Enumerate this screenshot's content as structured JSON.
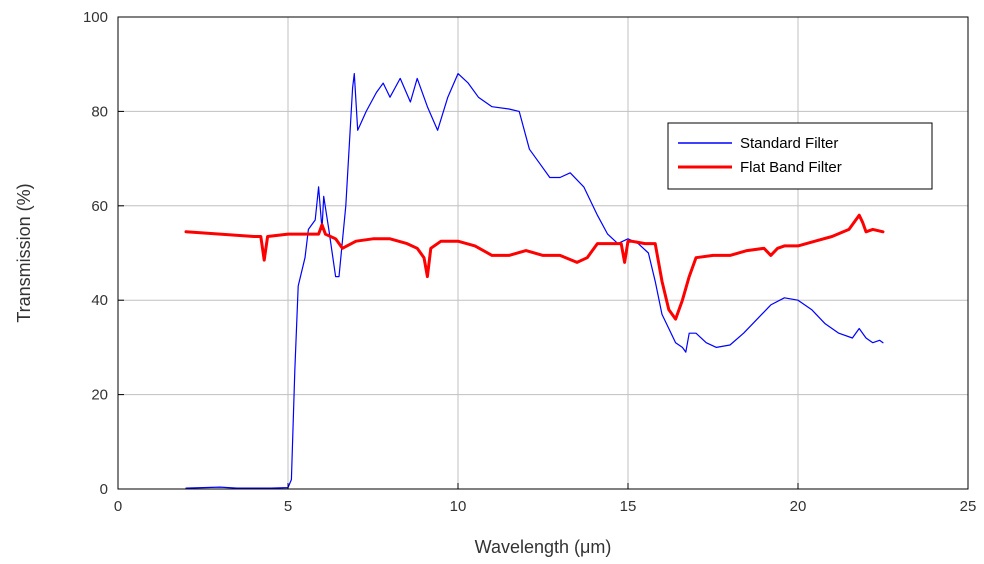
{
  "chart_data": {
    "type": "line",
    "title": "",
    "xlabel": "Wavelength (μm)",
    "ylabel": "Transmission (%)",
    "xlim": [
      0,
      25
    ],
    "ylim": [
      0,
      100
    ],
    "xticks": [
      0,
      5,
      10,
      15,
      20,
      25
    ],
    "yticks": [
      0,
      20,
      40,
      60,
      80,
      100
    ],
    "grid": true,
    "legend_position": "top-right",
    "series": [
      {
        "name": "Standard Filter",
        "color": "#0000ff",
        "x": [
          2.0,
          2.5,
          3.0,
          3.5,
          4.0,
          4.5,
          5.0,
          5.1,
          5.2,
          5.3,
          5.5,
          5.6,
          5.8,
          5.9,
          6.0,
          6.05,
          6.2,
          6.4,
          6.5,
          6.7,
          6.9,
          6.95,
          7.05,
          7.3,
          7.6,
          7.8,
          8.0,
          8.3,
          8.6,
          8.8,
          9.1,
          9.4,
          9.7,
          10.0,
          10.3,
          10.6,
          11.0,
          11.5,
          11.8,
          12.1,
          12.4,
          12.7,
          13.0,
          13.3,
          13.7,
          14.1,
          14.4,
          14.7,
          15.0,
          15.3,
          15.6,
          15.8,
          16.0,
          16.2,
          16.4,
          16.6,
          16.7,
          16.8,
          17.0,
          17.3,
          17.6,
          18.0,
          18.4,
          18.8,
          19.2,
          19.6,
          20.0,
          20.4,
          20.8,
          21.2,
          21.6,
          21.8,
          22.0,
          22.2,
          22.4,
          22.5
        ],
        "values": [
          0.2,
          0.3,
          0.4,
          0.2,
          0.2,
          0.2,
          0.3,
          2,
          25,
          43,
          49,
          55,
          57,
          64,
          55,
          62,
          55,
          45,
          45,
          60,
          85,
          88,
          76,
          80,
          84,
          86,
          83,
          87,
          82,
          87,
          81,
          76,
          83,
          88,
          86,
          83,
          81,
          80.5,
          80,
          72,
          69,
          66,
          66,
          67,
          64,
          58,
          54,
          52,
          53,
          52,
          50,
          44,
          37,
          34,
          31,
          30,
          29,
          33,
          33,
          31,
          30,
          30.5,
          33,
          36,
          39,
          40.5,
          40,
          38,
          35,
          33,
          32,
          34,
          32,
          31,
          31.5,
          31
        ]
      },
      {
        "name": "Flat Band Filter",
        "color": "#ff0000",
        "x": [
          2.0,
          3.0,
          4.0,
          4.2,
          4.3,
          4.4,
          5.0,
          5.5,
          5.9,
          6.0,
          6.1,
          6.4,
          6.6,
          7.0,
          7.5,
          8.0,
          8.5,
          8.8,
          9.0,
          9.1,
          9.2,
          9.5,
          10.0,
          10.5,
          11.0,
          11.5,
          12.0,
          12.5,
          13.0,
          13.5,
          13.8,
          14.1,
          14.5,
          14.8,
          14.9,
          15.0,
          15.1,
          15.5,
          15.8,
          16.0,
          16.2,
          16.4,
          16.6,
          16.8,
          17.0,
          17.5,
          18.0,
          18.5,
          19.0,
          19.2,
          19.4,
          19.6,
          20.0,
          20.5,
          21.0,
          21.5,
          21.8,
          21.9,
          22.0,
          22.2,
          22.5
        ],
        "values": [
          54.5,
          54,
          53.5,
          53.5,
          48.5,
          53.5,
          54,
          54,
          54,
          56,
          54,
          53,
          51,
          52.5,
          53,
          53,
          52,
          51,
          49,
          45,
          51,
          52.5,
          52.5,
          51.5,
          49.5,
          49.5,
          50.5,
          49.5,
          49.5,
          48,
          49,
          52,
          52,
          52,
          48,
          52.5,
          52.5,
          52,
          52,
          44,
          38,
          36,
          40,
          45,
          49,
          49.5,
          49.5,
          50.5,
          51,
          49.5,
          51,
          51.5,
          51.5,
          52.5,
          53.5,
          55,
          58,
          56.5,
          54.5,
          55,
          54.5
        ]
      }
    ]
  }
}
